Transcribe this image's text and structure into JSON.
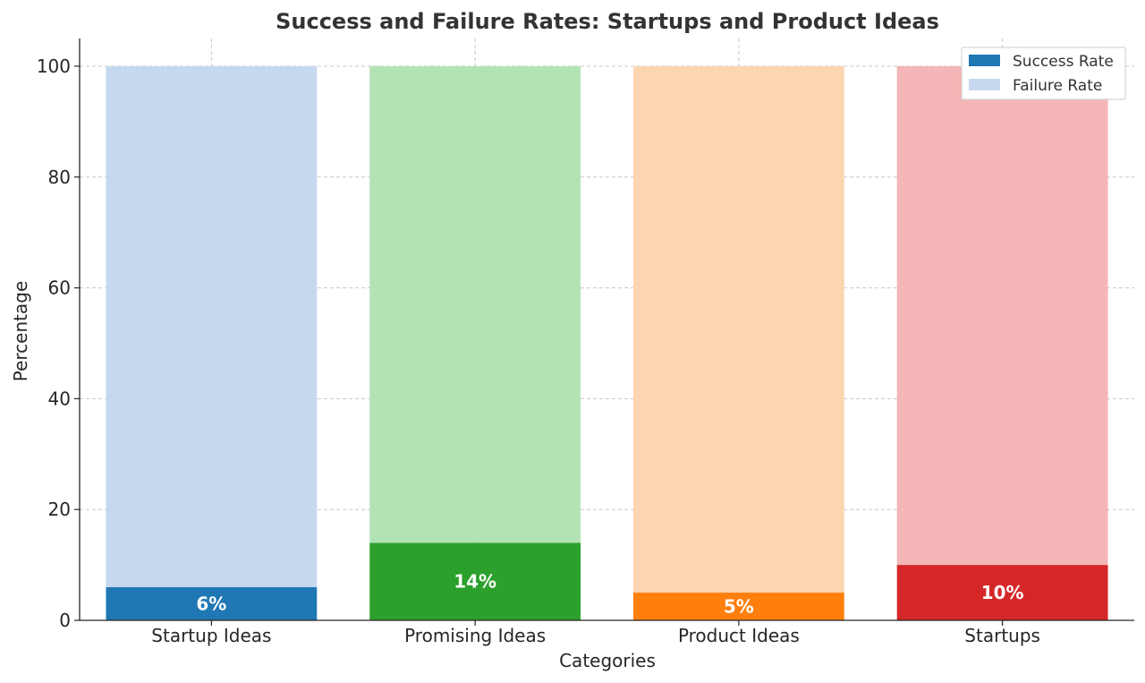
{
  "chart_data": {
    "type": "bar",
    "stacked": true,
    "title": "Success and Failure Rates: Startups and Product Ideas",
    "xlabel": "Categories",
    "ylabel": "Percentage",
    "ylim": [
      0,
      105
    ],
    "yticks": [
      0,
      20,
      40,
      60,
      80,
      100
    ],
    "grid": true,
    "legend_position": "top-right",
    "categories": [
      "Startup Ideas",
      "Promising Ideas",
      "Product Ideas",
      "Startups"
    ],
    "series": [
      {
        "name": "Success Rate",
        "values": [
          6,
          14,
          5,
          10
        ],
        "colors": [
          "#1f77b4",
          "#2ca02c",
          "#ff7f0e",
          "#d62728"
        ]
      },
      {
        "name": "Failure Rate",
        "values": [
          94,
          86,
          95,
          90
        ],
        "colors": [
          "#c6d8ee",
          "#b3e3b5",
          "#fdd5b1",
          "#f4b6b6"
        ]
      }
    ],
    "data_labels": [
      "6%",
      "14%",
      "5%",
      "10%"
    ],
    "legend_swatches": [
      "#1f77b4",
      "#c6d8ee"
    ]
  }
}
